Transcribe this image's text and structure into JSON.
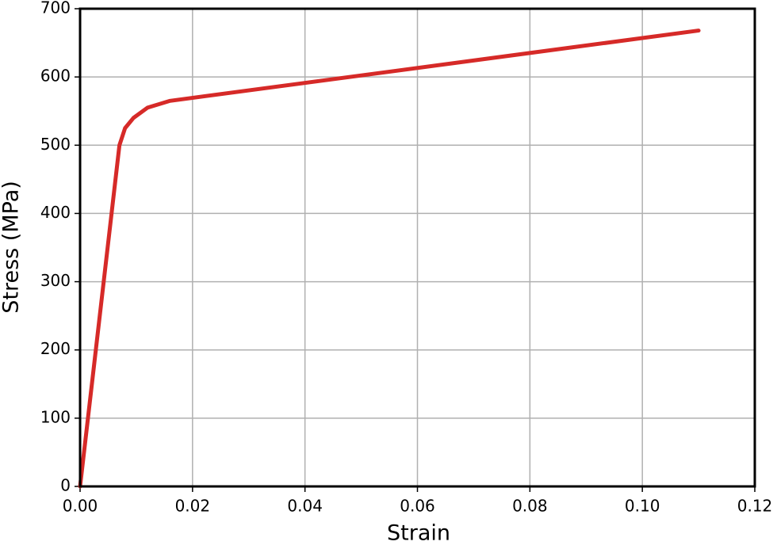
{
  "chart_data": {
    "type": "line",
    "x_label": "Strain",
    "y_label": "Stress (MPa)",
    "x": [
      0,
      0.007,
      0.008,
      0.0095,
      0.012,
      0.016,
      0.11
    ],
    "series": [
      {
        "color": "#d62a28",
        "values": [
          0,
          500,
          525,
          540,
          555,
          565,
          668
        ]
      }
    ],
    "xlim": [
      0,
      0.12
    ],
    "xticks": [
      {
        "value": 0,
        "label": "0.00"
      },
      0.02,
      0.04,
      0.06,
      0.08,
      {
        "value": 0.1,
        "label": "0.10"
      },
      0.12
    ],
    "ylim": [
      0,
      700
    ],
    "yticks": [
      0,
      100,
      200,
      300,
      400,
      500,
      600,
      700
    ],
    "grid": true
  }
}
